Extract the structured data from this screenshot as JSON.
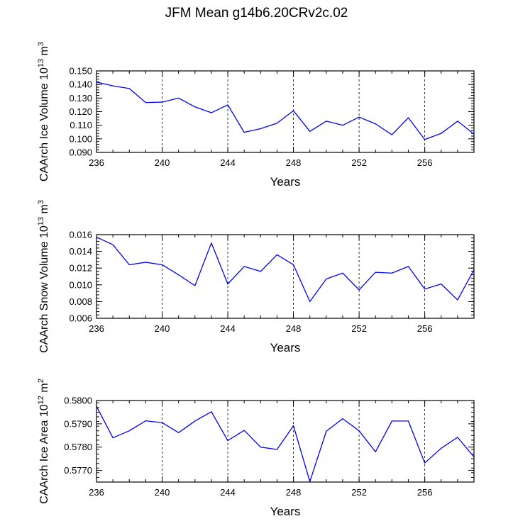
{
  "title": "JFM Mean g14b6.20CRv2c.02",
  "colors": {
    "line": "#0000ff",
    "axis": "#000000",
    "grid": "#000000"
  },
  "chart_data": [
    {
      "type": "line",
      "title": "",
      "xlabel": "Years",
      "ylabel": "CAArch Ice Volume 10",
      "ylabel_exp": "13",
      "ylabel_unit": " m",
      "ylabel_unit_exp": "3",
      "xlim": [
        236,
        259
      ],
      "ylim": [
        0.09,
        0.15
      ],
      "xticks": [
        236,
        240,
        244,
        248,
        252,
        256
      ],
      "xtick_labels": [
        "236",
        "240",
        "244",
        "248",
        "252",
        "256"
      ],
      "yticks": [
        0.09,
        0.1,
        0.11,
        0.12,
        0.13,
        0.14,
        0.15
      ],
      "ytick_labels": [
        "0.090",
        "0.100",
        "0.110",
        "0.120",
        "0.130",
        "0.140",
        "0.150"
      ],
      "grid_x": [
        240,
        244,
        248,
        252,
        256
      ],
      "x": [
        236,
        237,
        238,
        239,
        240,
        241,
        242,
        243,
        244,
        245,
        246,
        247,
        248,
        249,
        250,
        251,
        252,
        253,
        254,
        255,
        256,
        257,
        258,
        259
      ],
      "series": [
        {
          "name": "CAArch Ice Volume",
          "values": [
            0.1418,
            0.139,
            0.137,
            0.1267,
            0.127,
            0.13,
            0.1235,
            0.1192,
            0.125,
            0.1048,
            0.1075,
            0.1115,
            0.1207,
            0.1055,
            0.113,
            0.11,
            0.116,
            0.111,
            0.103,
            0.1155,
            0.0995,
            0.104,
            0.113,
            0.1035
          ]
        }
      ]
    },
    {
      "type": "line",
      "title": "",
      "xlabel": "Years",
      "ylabel": "CAArch Snow Volume 10",
      "ylabel_exp": "13",
      "ylabel_unit": " m",
      "ylabel_unit_exp": "3",
      "xlim": [
        236,
        259
      ],
      "ylim": [
        0.006,
        0.016
      ],
      "xticks": [
        236,
        240,
        244,
        248,
        252,
        256
      ],
      "xtick_labels": [
        "236",
        "240",
        "244",
        "248",
        "252",
        "256"
      ],
      "yticks": [
        0.006,
        0.008,
        0.01,
        0.012,
        0.014,
        0.016
      ],
      "ytick_labels": [
        "0.006",
        "0.008",
        "0.010",
        "0.012",
        "0.014",
        "0.016"
      ],
      "grid_x": [
        240,
        244,
        248,
        252,
        256
      ],
      "x": [
        236,
        237,
        238,
        239,
        240,
        241,
        242,
        243,
        244,
        245,
        246,
        247,
        248,
        249,
        250,
        251,
        252,
        253,
        254,
        255,
        256,
        257,
        258,
        259
      ],
      "series": [
        {
          "name": "CAArch Snow Volume",
          "values": [
            0.0157,
            0.0148,
            0.0124,
            0.0127,
            0.0124,
            0.0112,
            0.0099,
            0.015,
            0.0101,
            0.0122,
            0.0116,
            0.0136,
            0.0124,
            0.008,
            0.0107,
            0.0114,
            0.0094,
            0.0115,
            0.0114,
            0.0122,
            0.0095,
            0.0101,
            0.0082,
            0.0118
          ]
        }
      ]
    },
    {
      "type": "line",
      "title": "",
      "xlabel": "Years",
      "ylabel": "CAArch Ice Area 10",
      "ylabel_exp": "12",
      "ylabel_unit": " m",
      "ylabel_unit_exp": "2",
      "xlim": [
        236,
        259
      ],
      "ylim": [
        0.5765,
        0.58
      ],
      "xticks": [
        236,
        240,
        244,
        248,
        252,
        256
      ],
      "xtick_labels": [
        "236",
        "240",
        "244",
        "248",
        "252",
        "256"
      ],
      "yticks": [
        0.577,
        0.578,
        0.579,
        0.58
      ],
      "ytick_labels": [
        "0.5770",
        "0.5780",
        "0.5790",
        "0.5800"
      ],
      "grid_x": [
        240,
        244,
        248,
        252,
        256
      ],
      "x": [
        236,
        237,
        238,
        239,
        240,
        241,
        242,
        243,
        244,
        245,
        246,
        247,
        248,
        249,
        250,
        251,
        252,
        253,
        254,
        255,
        256,
        257,
        258,
        259
      ],
      "series": [
        {
          "name": "CAArch Ice Area",
          "values": [
            0.57975,
            0.5784,
            0.5787,
            0.57913,
            0.57905,
            0.57862,
            0.57912,
            0.57952,
            0.57828,
            0.57872,
            0.578,
            0.5779,
            0.57892,
            0.57652,
            0.57868,
            0.57922,
            0.5787,
            0.5778,
            0.57912,
            0.57912,
            0.57732,
            0.57795,
            0.57842,
            0.57758
          ]
        }
      ]
    }
  ]
}
